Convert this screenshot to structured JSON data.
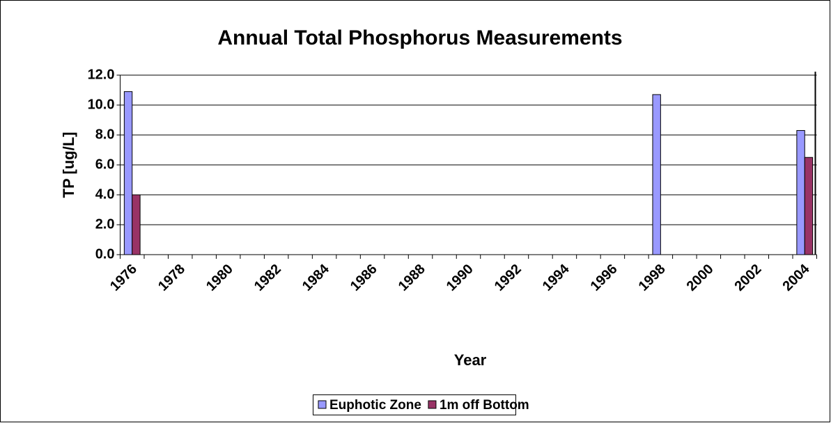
{
  "chart_data": {
    "type": "bar",
    "title": "Annual Total Phosphorus Measurements",
    "x_label": "Year",
    "y_label": "TP [ug/L]",
    "categories": [
      "1976",
      null,
      "1978",
      null,
      "1980",
      null,
      "1982",
      null,
      "1984",
      null,
      "1986",
      null,
      "1988",
      null,
      "1990",
      null,
      "1992",
      null,
      "1994",
      null,
      "1996",
      null,
      "1998",
      null,
      "2000",
      null,
      "2002",
      null,
      "2004"
    ],
    "series": [
      {
        "name": "Euphotic Zone",
        "color": "#9999ff",
        "values": [
          10.9,
          null,
          null,
          null,
          null,
          null,
          null,
          null,
          null,
          null,
          null,
          null,
          null,
          null,
          null,
          null,
          null,
          null,
          null,
          null,
          null,
          null,
          10.7,
          null,
          null,
          null,
          null,
          null,
          8.3
        ]
      },
      {
        "name": "1m off Bottom",
        "color": "#993366",
        "values": [
          4.0,
          null,
          null,
          null,
          null,
          null,
          null,
          null,
          null,
          null,
          null,
          null,
          null,
          null,
          null,
          null,
          null,
          null,
          null,
          null,
          null,
          null,
          null,
          null,
          null,
          null,
          null,
          null,
          6.5
        ]
      }
    ],
    "ylim": [
      0,
      12
    ],
    "yticks": [
      {
        "value": 0,
        "label": "0.0"
      },
      {
        "value": 2,
        "label": "2.0"
      },
      {
        "value": 4,
        "label": "4.0"
      },
      {
        "value": 6,
        "label": "6.0"
      },
      {
        "value": 8,
        "label": "8.0"
      },
      {
        "value": 10,
        "label": "10.0"
      },
      {
        "value": 12,
        "label": "12.0"
      }
    ],
    "grid": true,
    "legend": "bottom"
  }
}
